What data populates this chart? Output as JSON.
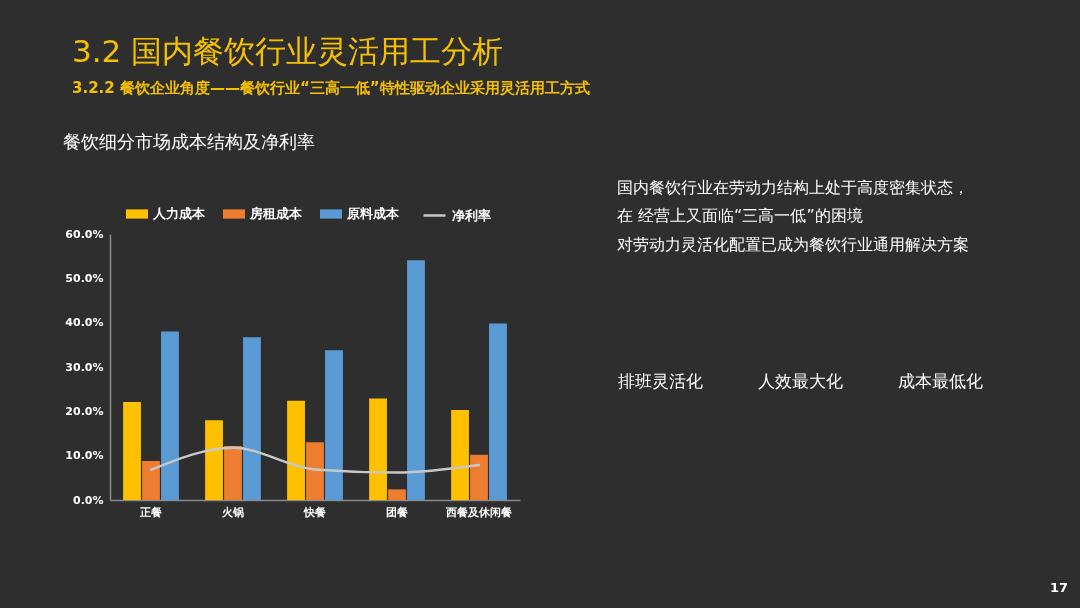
{
  "chart_data": [
    {
      "type": "other",
      "title": "3.2 国内餐饮行业灵活用工分析",
      "subtitle": "3.2.2 餐饮企业角度——餐饮行业“三高一低”特性驱动企业采用灵活用工方式"
    },
    {
      "type": "bar",
      "title": "餐饮细分市场成本结构及净利率",
      "categories": [
        "正餐",
        "火锅",
        "快餐",
        "团餐",
        "西餐及休闲餐"
      ],
      "series": [
        {
          "name": "人力成本",
          "color": "#ffc000",
          "values": [
            22.1,
            18.0,
            22.4,
            22.9,
            20.3
          ]
        },
        {
          "name": "房租成本",
          "color": "#ed7d31",
          "values": [
            8.8,
            12.2,
            13.0,
            2.4,
            10.2
          ]
        },
        {
          "name": "原料成本",
          "color": "#5b9bd5",
          "values": [
            38.0,
            36.7,
            33.8,
            54.1,
            39.8
          ]
        },
        {
          "name": "净利率",
          "type": "line",
          "color": "#c8c8c8",
          "values": [
            6.8,
            11.8,
            6.9,
            6.2,
            7.9
          ]
        }
      ],
      "ylim": [
        0,
        60
      ],
      "yticks": [
        {
          "value": 0,
          "label": "0.0%"
        },
        {
          "value": 10,
          "label": "10.0%"
        },
        {
          "value": 20,
          "label": "20.0%"
        },
        {
          "value": 30,
          "label": "30.0%"
        },
        {
          "value": 40,
          "label": "40.0%"
        },
        {
          "value": 50,
          "label": "50.0%"
        },
        {
          "value": 60,
          "label": "60.0%"
        }
      ],
      "legend": "top"
    },
    {
      "type": "other",
      "annotations": [
        "国内餐饮行业在劳动力结构上处于高度密集状态，",
        "在 经营上又面临“三高一低”的困境",
        "对劳动力灵活化配置已成为餐饮行业通用解决方案",
        "排班灵活化",
        "人效最大化",
        "成本最低化",
        "17"
      ]
    }
  ]
}
